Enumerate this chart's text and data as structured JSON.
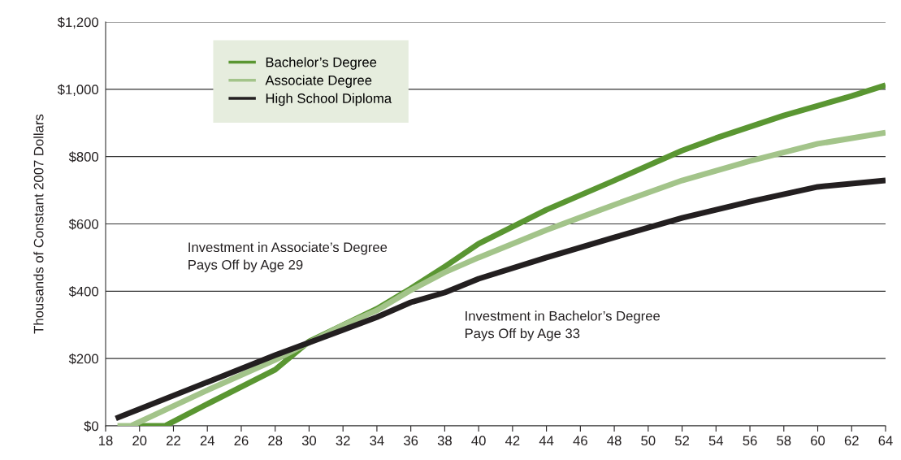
{
  "chart_data": {
    "type": "line",
    "ylabel": "Thousands of Constant 2007 Dollars",
    "xlim": [
      18,
      64
    ],
    "xticks": [
      18,
      20,
      22,
      24,
      26,
      28,
      30,
      32,
      34,
      36,
      38,
      40,
      42,
      44,
      46,
      48,
      50,
      52,
      54,
      56,
      58,
      60,
      62,
      64
    ],
    "ylim": [
      0,
      1200
    ],
    "yticks": [
      {
        "value": 0,
        "label": "$0"
      },
      {
        "value": 200,
        "label": "$200"
      },
      {
        "value": 400,
        "label": "$400"
      },
      {
        "value": 600,
        "label": "$600"
      },
      {
        "value": 800,
        "label": "$800"
      },
      {
        "value": 1000,
        "label": "$1,000"
      },
      {
        "value": 1200,
        "label": "$1,200"
      }
    ],
    "grid": "y",
    "legend": "top left",
    "line_style": "solid",
    "marker": "none",
    "series": [
      {
        "name": "Bachelor’s Degree",
        "color": "#5a9632",
        "x": [
          19.5,
          21.5,
          24,
          28,
          30,
          34,
          36,
          38,
          40,
          44,
          48,
          52,
          54,
          58,
          62,
          64
        ],
        "values": [
          0,
          0,
          65,
          167,
          251,
          348,
          408,
          473,
          541,
          642,
          729,
          818,
          855,
          922,
          980,
          1012
        ]
      },
      {
        "name": "Associate Degree",
        "color": "#a3c48a",
        "x": [
          18.7,
          19.5,
          24,
          28,
          32,
          34,
          36,
          38,
          40,
          44,
          48,
          52,
          56,
          60,
          64
        ],
        "values": [
          0,
          0,
          106,
          196,
          299,
          343,
          403,
          456,
          500,
          582,
          657,
          729,
          787,
          838,
          871
        ]
      },
      {
        "name": "High School Diploma",
        "color": "#231f20",
        "x": [
          18.6,
          24,
          28,
          32,
          34,
          36,
          38,
          40,
          44,
          48,
          52,
          56,
          60,
          64
        ],
        "values": [
          22,
          130,
          210,
          285,
          323,
          367,
          396,
          437,
          500,
          560,
          618,
          666,
          710,
          729
        ]
      }
    ],
    "annotations": [
      "Investment in Associate’s Degree\nPays Off by Age 29",
      "Investment in Bachelor’s Degree\nPays Off by Age 33"
    ]
  }
}
